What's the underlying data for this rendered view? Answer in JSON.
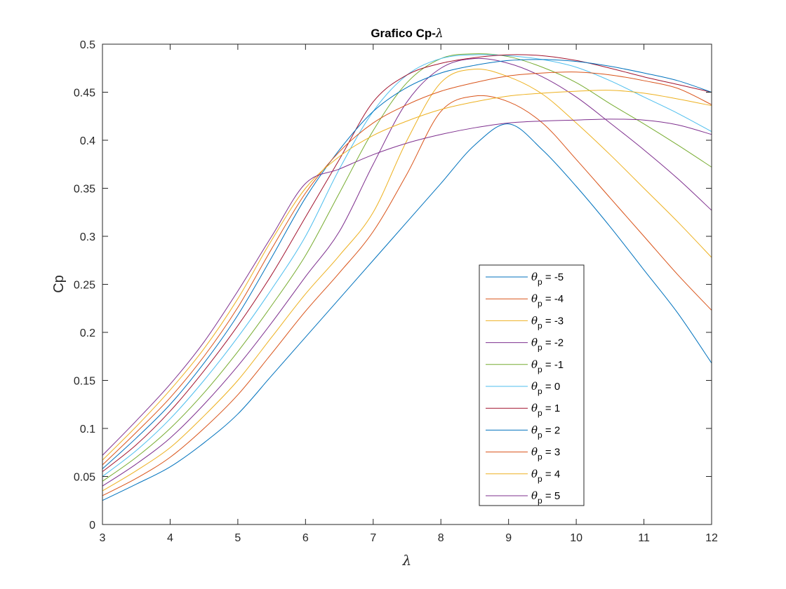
{
  "chart_data": {
    "type": "line",
    "title_text": "Grafico Cp-",
    "title_symbol": "λ",
    "xlabel": "λ",
    "ylabel": "Cp",
    "xlim": [
      3,
      12
    ],
    "ylim": [
      0,
      0.5
    ],
    "x_ticks": [
      3,
      4,
      5,
      6,
      7,
      8,
      9,
      10,
      11,
      12
    ],
    "y_ticks": [
      0,
      0.05,
      0.1,
      0.15,
      0.2,
      0.25,
      0.3,
      0.35,
      0.4,
      0.45,
      0.5
    ],
    "y_tick_labels": [
      "0",
      "0.05",
      "0.1",
      "0.15",
      "0.2",
      "0.25",
      "0.3",
      "0.35",
      "0.4",
      "0.45",
      "0.5"
    ],
    "grid": false,
    "legend_placement": "lower-right",
    "legend_symbol": "θ",
    "legend_subscript": "p",
    "x": [
      3,
      3.5,
      4,
      4.5,
      5,
      5.5,
      6,
      6.5,
      7,
      7.5,
      8,
      8.5,
      9,
      9.5,
      10,
      10.5,
      11,
      11.5,
      12
    ],
    "series": [
      {
        "name": " = -5",
        "color": "#0072BD",
        "values": [
          0.025,
          0.042,
          0.06,
          0.085,
          0.115,
          0.155,
          0.195,
          0.235,
          0.275,
          0.315,
          0.355,
          0.395,
          0.417,
          0.39,
          0.352,
          0.31,
          0.265,
          0.22,
          0.168
        ]
      },
      {
        "name": " = -4",
        "color": "#D95319",
        "values": [
          0.03,
          0.048,
          0.07,
          0.1,
          0.135,
          0.178,
          0.222,
          0.262,
          0.305,
          0.365,
          0.43,
          0.446,
          0.44,
          0.418,
          0.38,
          0.34,
          0.3,
          0.26,
          0.223
        ]
      },
      {
        "name": " = -3",
        "color": "#EDB120",
        "values": [
          0.035,
          0.056,
          0.08,
          0.113,
          0.15,
          0.195,
          0.24,
          0.28,
          0.325,
          0.4,
          0.46,
          0.474,
          0.466,
          0.448,
          0.418,
          0.385,
          0.35,
          0.315,
          0.278
        ]
      },
      {
        "name": " = -2",
        "color": "#7E2F8E",
        "values": [
          0.04,
          0.063,
          0.09,
          0.125,
          0.165,
          0.21,
          0.258,
          0.305,
          0.375,
          0.44,
          0.475,
          0.485,
          0.48,
          0.466,
          0.445,
          0.418,
          0.39,
          0.36,
          0.327
        ]
      },
      {
        "name": " = -1",
        "color": "#77AC30",
        "values": [
          0.045,
          0.07,
          0.1,
          0.137,
          0.18,
          0.228,
          0.28,
          0.345,
          0.41,
          0.46,
          0.485,
          0.49,
          0.487,
          0.476,
          0.46,
          0.438,
          0.417,
          0.395,
          0.372
        ]
      },
      {
        "name": " = 0",
        "color": "#4DBEEE",
        "values": [
          0.05,
          0.077,
          0.11,
          0.15,
          0.195,
          0.245,
          0.3,
          0.37,
          0.43,
          0.468,
          0.485,
          0.489,
          0.488,
          0.484,
          0.476,
          0.462,
          0.445,
          0.428,
          0.409
        ]
      },
      {
        "name": " = 1",
        "color": "#A2142F",
        "values": [
          0.055,
          0.083,
          0.118,
          0.16,
          0.207,
          0.26,
          0.32,
          0.38,
          0.44,
          0.468,
          0.48,
          0.486,
          0.489,
          0.488,
          0.483,
          0.475,
          0.466,
          0.458,
          0.45
        ]
      },
      {
        "name": " = 2",
        "color": "#0072BD",
        "values": [
          0.058,
          0.09,
          0.125,
          0.168,
          0.218,
          0.278,
          0.34,
          0.39,
          0.43,
          0.455,
          0.47,
          0.478,
          0.483,
          0.484,
          0.482,
          0.477,
          0.47,
          0.462,
          0.45
        ]
      },
      {
        "name": " = 3",
        "color": "#D95319",
        "values": [
          0.062,
          0.096,
          0.132,
          0.175,
          0.226,
          0.287,
          0.345,
          0.388,
          0.418,
          0.437,
          0.451,
          0.46,
          0.467,
          0.47,
          0.471,
          0.468,
          0.462,
          0.454,
          0.437
        ]
      },
      {
        "name": " = 4",
        "color": "#EDB120",
        "values": [
          0.067,
          0.102,
          0.14,
          0.183,
          0.235,
          0.296,
          0.35,
          0.383,
          0.405,
          0.42,
          0.432,
          0.44,
          0.446,
          0.449,
          0.451,
          0.452,
          0.449,
          0.443,
          0.436
        ]
      },
      {
        "name": " = 5",
        "color": "#7E2F8E",
        "values": [
          0.072,
          0.108,
          0.146,
          0.19,
          0.243,
          0.3,
          0.355,
          0.37,
          0.385,
          0.397,
          0.406,
          0.413,
          0.418,
          0.42,
          0.421,
          0.422,
          0.421,
          0.416,
          0.406
        ]
      }
    ]
  }
}
